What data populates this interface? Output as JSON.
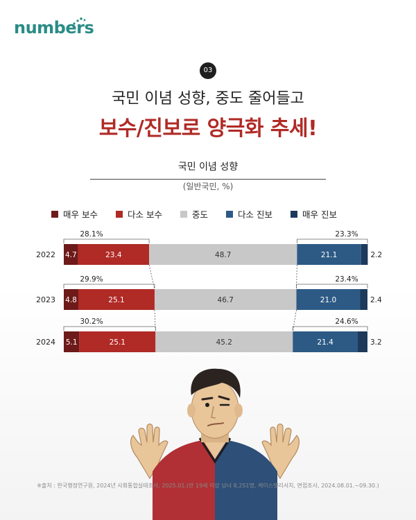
{
  "brand": "numbers",
  "badge": "03",
  "headline_line1": "국민 이념 성향, 중도 줄어들고",
  "headline_line2": "보수/진보로 양극화 추세!",
  "source": "※출처 : 한국행정연구원, 2024년 사회통합실태조사, 2025.01.(만 19세 이상 남녀 8,251명, 케이스탯리서치, 면접조사, 2024.08.01.~09.30.)",
  "colors": {
    "very_conservative": "#6e1a1a",
    "somewhat_conservative": "#b02a26",
    "moderate": "#c8c8c8",
    "somewhat_progressive": "#2d5a85",
    "very_progressive": "#1d3a5a"
  },
  "chart_data": {
    "type": "bar",
    "orientation": "horizontal-stacked-100",
    "title": "국민 이념 성향",
    "subtitle": "(일반국민, %)",
    "legend": [
      "매우 보수",
      "다소 보수",
      "중도",
      "다소 진보",
      "매우 진보"
    ],
    "categories": [
      "2022",
      "2023",
      "2024"
    ],
    "series": [
      {
        "name": "매우 보수",
        "values": [
          4.7,
          4.8,
          5.1
        ]
      },
      {
        "name": "다소 보수",
        "values": [
          23.4,
          25.1,
          25.1
        ]
      },
      {
        "name": "중도",
        "values": [
          48.7,
          46.7,
          45.2
        ]
      },
      {
        "name": "다소 진보",
        "values": [
          21.1,
          21.0,
          21.4
        ]
      },
      {
        "name": "매우 진보",
        "values": [
          2.2,
          2.4,
          3.2
        ]
      }
    ],
    "conservative_totals": [
      "28.1%",
      "29.9%",
      "30.2%"
    ],
    "progressive_totals": [
      "23.3%",
      "23.4%",
      "24.6%"
    ],
    "xlim": [
      0,
      100
    ]
  }
}
